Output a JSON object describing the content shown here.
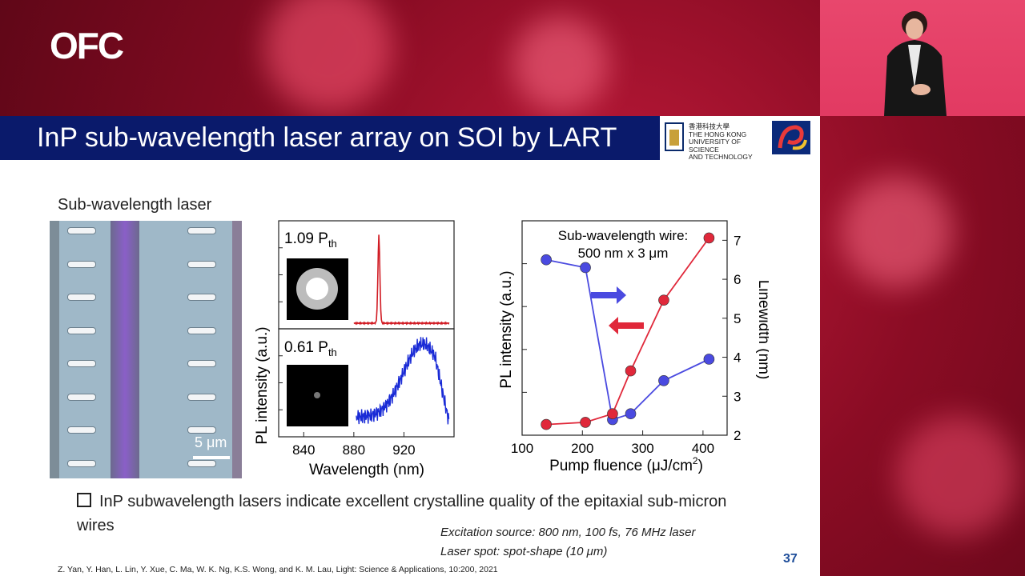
{
  "header": {
    "logo": "OFC"
  },
  "slide": {
    "title": "InP sub-wavelength laser array on SOI by LART",
    "logos": {
      "hkust_chinese": "香港科技大學",
      "hkust_line1": "THE HONG KONG",
      "hkust_line2": "UNIVERSITY OF SCIENCE",
      "hkust_line3": "AND TECHNOLOGY"
    },
    "section_label": "Sub-wavelength laser",
    "scale_bar": "5 μm",
    "bullet": "InP subwavelength lasers indicate excellent crystalline quality of the epitaxial sub-micron wires",
    "excitation_line1": "Excitation source:  800 nm, 100 fs, 76 MHz laser",
    "excitation_line2": "Laser spot: spot-shape (10 μm)",
    "page_number": "37",
    "citation": "Z. Yan, Y. Han, L. Lin, Y. Xue, C. Ma, W. K. Ng, K.S. Wong, and K. M. Lau, Light: Science & Applications, 10:200, 2021"
  },
  "chart_data": [
    {
      "type": "line",
      "xlabel": "Wavelength (nm)",
      "ylabel": "PL intensity (a.u.)",
      "xlim": [
        820,
        960
      ],
      "xticks": [
        "840",
        "880",
        "920"
      ],
      "panels": [
        {
          "label": "1.09 P",
          "sub": "th",
          "color": "#d11c24",
          "shape": "narrow peak at ~900 nm"
        },
        {
          "label": "0.61 P",
          "sub": "th",
          "color": "#1a2bd6",
          "shape": "broad spontaneous emission, max ~935 nm"
        }
      ]
    },
    {
      "type": "scatter",
      "title_line1": "Sub-wavelength wire:",
      "title_line2": "500 nm x 3 μm",
      "xlabel": "Pump fluence (μJ/cm",
      "xlabel_sup": "2",
      "xlabel_end": ")",
      "ylabel_left": "PL intensity (a.u.)",
      "ylabel_right": "Linewidth (nm)",
      "xlim": [
        100,
        440
      ],
      "xticks": [
        "100",
        "200",
        "300",
        "400"
      ],
      "ylim_right": [
        2,
        7.5
      ],
      "yticks_right": [
        "2",
        "3",
        "4",
        "5",
        "6",
        "7"
      ],
      "series": [
        {
          "name": "Linewidth",
          "axis": "right",
          "color": "#4a4ae0",
          "x": [
            140,
            205,
            250,
            280,
            335,
            410
          ],
          "y": [
            6.5,
            6.3,
            2.4,
            2.55,
            3.4,
            3.95
          ]
        },
        {
          "name": "PL intensity",
          "axis": "left",
          "color": "#e0283a",
          "x": [
            140,
            205,
            250,
            280,
            335,
            410
          ],
          "y": [
            0.05,
            0.06,
            0.1,
            0.3,
            0.63,
            0.92
          ]
        }
      ]
    }
  ]
}
